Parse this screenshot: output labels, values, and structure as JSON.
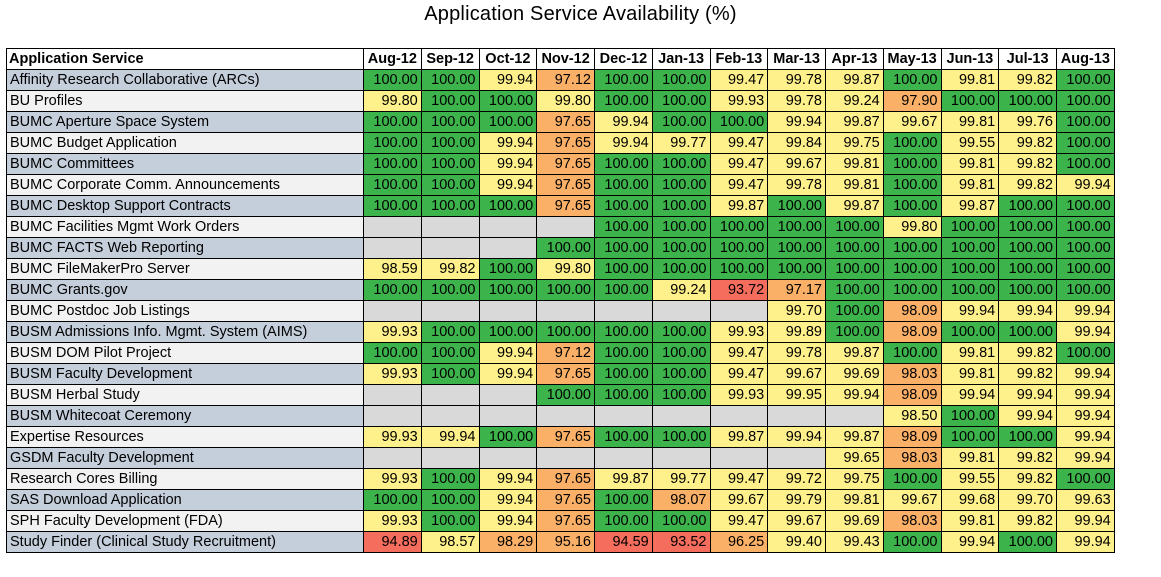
{
  "chart_data": {
    "type": "table",
    "title": "Application Service Availability (%)",
    "row_header": "Application Service",
    "columns": [
      "Aug-12",
      "Sep-12",
      "Oct-12",
      "Nov-12",
      "Dec-12",
      "Jan-13",
      "Feb-13",
      "Mar-13",
      "Apr-13",
      "May-13",
      "Jun-13",
      "Jul-13",
      "Aug-13"
    ],
    "rows": [
      {
        "name": "Affinity Research Collaborative (ARCs)",
        "values": [
          "100.00",
          "100.00",
          "99.94",
          "97.12",
          "100.00",
          "100.00",
          "99.47",
          "99.78",
          "99.87",
          "100.00",
          "99.81",
          "99.82",
          "100.00"
        ]
      },
      {
        "name": "BU Profiles",
        "values": [
          "99.80",
          "100.00",
          "100.00",
          "99.80",
          "100.00",
          "100.00",
          "99.93",
          "99.78",
          "99.24",
          "97.90",
          "100.00",
          "100.00",
          "100.00"
        ]
      },
      {
        "name": "BUMC Aperture Space System",
        "values": [
          "100.00",
          "100.00",
          "100.00",
          "97.65",
          "99.94",
          "100.00",
          "100.00",
          "99.94",
          "99.87",
          "99.67",
          "99.81",
          "99.76",
          "100.00"
        ]
      },
      {
        "name": "BUMC Budget Application",
        "values": [
          "100.00",
          "100.00",
          "99.94",
          "97.65",
          "99.94",
          "99.77",
          "99.47",
          "99.84",
          "99.75",
          "100.00",
          "99.55",
          "99.82",
          "100.00"
        ]
      },
      {
        "name": "BUMC Committees",
        "values": [
          "100.00",
          "100.00",
          "99.94",
          "97.65",
          "100.00",
          "100.00",
          "99.47",
          "99.67",
          "99.81",
          "100.00",
          "99.81",
          "99.82",
          "100.00"
        ]
      },
      {
        "name": "BUMC Corporate Comm. Announcements",
        "values": [
          "100.00",
          "100.00",
          "99.94",
          "97.65",
          "100.00",
          "100.00",
          "99.47",
          "99.78",
          "99.81",
          "100.00",
          "99.81",
          "99.82",
          "99.94"
        ]
      },
      {
        "name": "BUMC Desktop Support Contracts",
        "values": [
          "100.00",
          "100.00",
          "100.00",
          "97.65",
          "100.00",
          "100.00",
          "99.87",
          "100.00",
          "99.87",
          "100.00",
          "99.87",
          "100.00",
          "100.00"
        ]
      },
      {
        "name": "BUMC Facilities Mgmt Work Orders",
        "values": [
          "",
          "",
          "",
          "",
          "100.00",
          "100.00",
          "100.00",
          "100.00",
          "100.00",
          "99.80",
          "100.00",
          "100.00",
          "100.00"
        ]
      },
      {
        "name": "BUMC FACTS Web Reporting",
        "values": [
          "",
          "",
          "",
          "100.00",
          "100.00",
          "100.00",
          "100.00",
          "100.00",
          "100.00",
          "100.00",
          "100.00",
          "100.00",
          "100.00"
        ]
      },
      {
        "name": "BUMC FileMakerPro Server",
        "values": [
          "98.59",
          "99.82",
          "100.00",
          "99.80",
          "100.00",
          "100.00",
          "100.00",
          "100.00",
          "100.00",
          "100.00",
          "100.00",
          "100.00",
          "100.00"
        ]
      },
      {
        "name": "BUMC Grants.gov",
        "values": [
          "100.00",
          "100.00",
          "100.00",
          "100.00",
          "100.00",
          "99.24",
          "93.72",
          "97.17",
          "100.00",
          "100.00",
          "100.00",
          "100.00",
          "100.00"
        ]
      },
      {
        "name": "BUMC Postdoc Job Listings",
        "values": [
          "",
          "",
          "",
          "",
          "",
          "",
          "",
          "99.70",
          "100.00",
          "98.09",
          "99.94",
          "99.94",
          "99.94"
        ]
      },
      {
        "name": "BUSM Admissions Info. Mgmt. System (AIMS)",
        "values": [
          "99.93",
          "100.00",
          "100.00",
          "100.00",
          "100.00",
          "100.00",
          "99.93",
          "99.89",
          "100.00",
          "98.09",
          "100.00",
          "100.00",
          "99.94"
        ]
      },
      {
        "name": "BUSM DOM Pilot Project",
        "values": [
          "100.00",
          "100.00",
          "99.94",
          "97.12",
          "100.00",
          "100.00",
          "99.47",
          "99.78",
          "99.87",
          "100.00",
          "99.81",
          "99.82",
          "100.00"
        ]
      },
      {
        "name": "BUSM Faculty Development",
        "values": [
          "99.93",
          "100.00",
          "99.94",
          "97.65",
          "100.00",
          "100.00",
          "99.47",
          "99.67",
          "99.69",
          "98.03",
          "99.81",
          "99.82",
          "99.94"
        ]
      },
      {
        "name": "BUSM Herbal Study",
        "values": [
          "",
          "",
          "",
          "100.00",
          "100.00",
          "100.00",
          "99.93",
          "99.95",
          "99.94",
          "98.09",
          "99.94",
          "99.94",
          "99.94"
        ]
      },
      {
        "name": "BUSM Whitecoat Ceremony",
        "values": [
          "",
          "",
          "",
          "",
          "",
          "",
          "",
          "",
          "",
          "98.50",
          "100.00",
          "99.94",
          "99.94"
        ]
      },
      {
        "name": "Expertise Resources",
        "values": [
          "99.93",
          "99.94",
          "100.00",
          "97.65",
          "100.00",
          "100.00",
          "99.87",
          "99.94",
          "99.87",
          "98.09",
          "100.00",
          "100.00",
          "99.94"
        ]
      },
      {
        "name": "GSDM Faculty Development",
        "values": [
          "",
          "",
          "",
          "",
          "",
          "",
          "",
          "",
          "99.65",
          "98.03",
          "99.81",
          "99.82",
          "99.94"
        ]
      },
      {
        "name": "Research Cores Billing",
        "values": [
          "99.93",
          "100.00",
          "99.94",
          "97.65",
          "99.87",
          "99.77",
          "99.47",
          "99.72",
          "99.75",
          "100.00",
          "99.55",
          "99.82",
          "100.00"
        ]
      },
      {
        "name": "SAS Download Application",
        "values": [
          "100.00",
          "100.00",
          "99.94",
          "97.65",
          "100.00",
          "98.07",
          "99.67",
          "99.79",
          "99.81",
          "99.67",
          "99.68",
          "99.70",
          "99.63"
        ]
      },
      {
        "name": "SPH Faculty Development (FDA)",
        "values": [
          "99.93",
          "100.00",
          "99.94",
          "97.65",
          "100.00",
          "100.00",
          "99.47",
          "99.67",
          "99.69",
          "98.03",
          "99.81",
          "99.82",
          "99.94"
        ]
      },
      {
        "name": "Study Finder (Clinical Study Recruitment)",
        "values": [
          "94.89",
          "98.57",
          "98.29",
          "95.16",
          "94.59",
          "93.52",
          "96.25",
          "99.40",
          "99.43",
          "100.00",
          "99.94",
          "100.00",
          "99.94"
        ]
      }
    ]
  },
  "colors": {
    "full": "#3cb44b",
    "high": "#fef08a",
    "mid": "#fbb067",
    "low": "#f46d5d",
    "empty": "#d9d9d9",
    "name_odd": "#c5cfdc",
    "name_even": "#f2f2f2"
  }
}
